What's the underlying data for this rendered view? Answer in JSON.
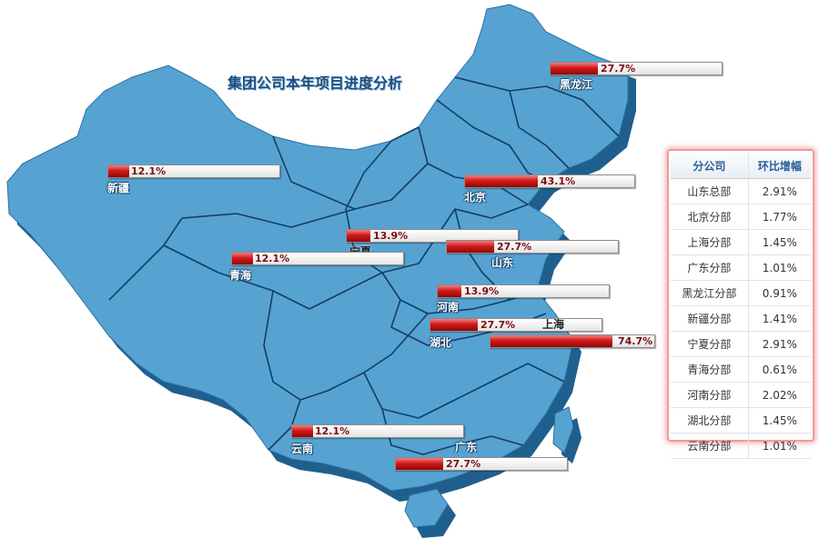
{
  "title": "集团公司本年项目进度分析",
  "colors": {
    "map_fill": "#56a3d2",
    "map_shadow": "#1f5f8e",
    "border_line": "#143e66",
    "bar_fill": "#c81414",
    "panel_border": "#f19a9a"
  },
  "regions": [
    {
      "label": "黑龙江",
      "percent": "27.7%",
      "progress": 0.277
    },
    {
      "label": "新疆",
      "percent": "12.1%",
      "progress": 0.121
    },
    {
      "label": "北京",
      "percent": "43.1%",
      "progress": 0.431
    },
    {
      "label": "宁夏",
      "percent": "13.9%",
      "progress": 0.139
    },
    {
      "label": "山东",
      "percent": "27.7%",
      "progress": 0.277
    },
    {
      "label": "青海",
      "percent": "12.1%",
      "progress": 0.121
    },
    {
      "label": "河南",
      "percent": "13.9%",
      "progress": 0.139
    },
    {
      "label": "湖北",
      "percent": "27.7%",
      "progress": 0.277
    },
    {
      "label": "上海",
      "percent": "74.7%",
      "progress": 0.747
    },
    {
      "label": "云南",
      "percent": "12.1%",
      "progress": 0.121
    },
    {
      "label": "广东",
      "percent": "27.7%",
      "progress": 0.277
    }
  ],
  "table": {
    "headers": [
      "分公司",
      "环比增幅"
    ],
    "rows": [
      [
        "山东总部",
        "2.91%"
      ],
      [
        "北京分部",
        "1.77%"
      ],
      [
        "上海分部",
        "1.45%"
      ],
      [
        "广东分部",
        "1.01%"
      ],
      [
        "黑龙江分部",
        "0.91%"
      ],
      [
        "新疆分部",
        "1.41%"
      ],
      [
        "宁夏分部",
        "2.91%"
      ],
      [
        "青海分部",
        "0.61%"
      ],
      [
        "河南分部",
        "2.02%"
      ],
      [
        "湖北分部",
        "1.45%"
      ],
      [
        "云南分部",
        "1.01%"
      ]
    ]
  }
}
